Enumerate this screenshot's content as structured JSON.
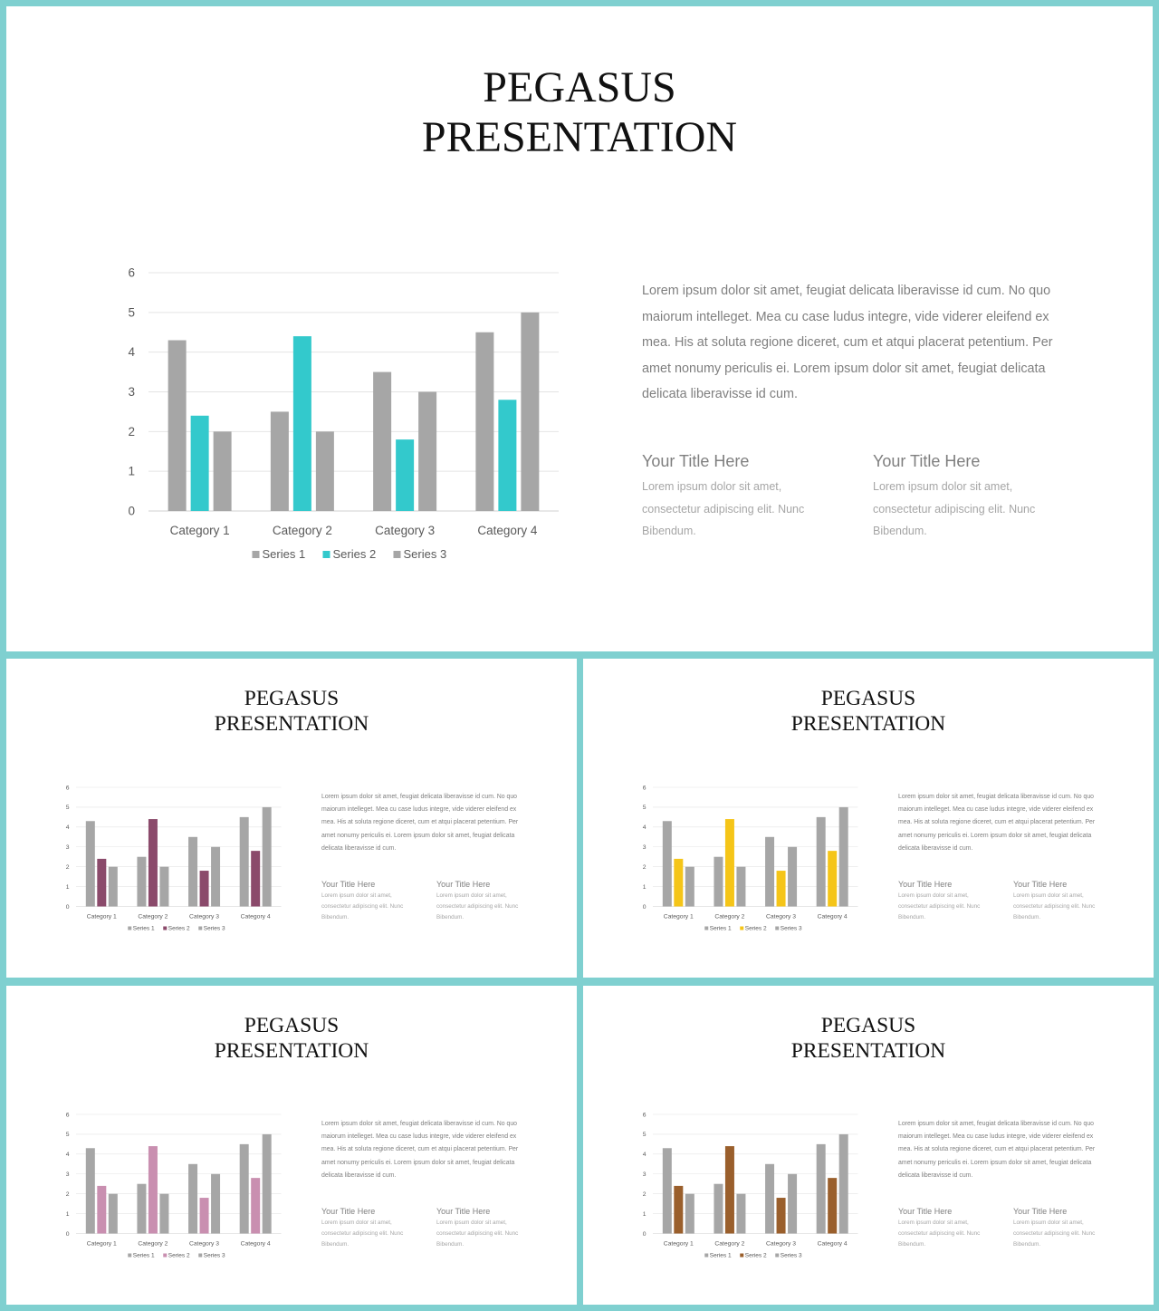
{
  "title_line1": "PEGASUS",
  "title_line2": "PRESENTATION",
  "body_text": "Lorem ipsum dolor sit amet, feugiat delicata liberavisse id cum. No quo maiorum intelleget. Mea cu case ludus integre, vide viderer eleifend ex mea. His at soluta regione diceret, cum et atqui placerat petentium. Per amet nonumy periculis ei. Lorem ipsum dolor sit amet, feugiat delicata delicata liberavisse id cum.",
  "columns": [
    {
      "title": "Your Title Here",
      "text": "Lorem ipsum dolor sit amet, consectetur adipiscing elit. Nunc Bibendum."
    },
    {
      "title": "Your Title Here",
      "text": "Lorem ipsum dolor sit amet, consectetur adipiscing elit. Nunc Bibendum."
    }
  ],
  "slides": [
    {
      "accent": "#33c9cc"
    },
    {
      "accent": "#8b4a6b"
    },
    {
      "accent": "#f5c518"
    },
    {
      "accent": "#c98fb0"
    },
    {
      "accent": "#9a5f2c"
    }
  ],
  "series_gray": "#a6a6a6",
  "chart_data": {
    "type": "bar",
    "categories": [
      "Category 1",
      "Category 2",
      "Category 3",
      "Category 4"
    ],
    "series": [
      {
        "name": "Series 1",
        "values": [
          4.3,
          2.5,
          3.5,
          4.5
        ]
      },
      {
        "name": "Series 2",
        "values": [
          2.4,
          4.4,
          1.8,
          2.8
        ]
      },
      {
        "name": "Series 3",
        "values": [
          2,
          2,
          3,
          5
        ]
      }
    ],
    "ylim": [
      0,
      6
    ],
    "yticks": [
      "0",
      "1",
      "2",
      "3",
      "4",
      "5",
      "6"
    ],
    "grid": true,
    "legend": "bottom"
  }
}
